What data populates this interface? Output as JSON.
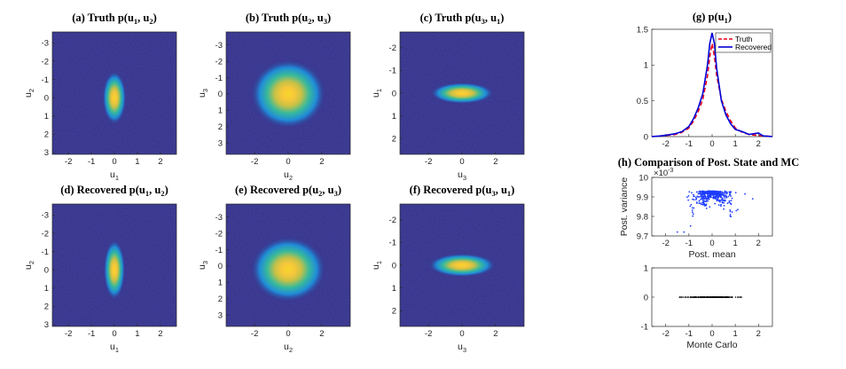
{
  "colors": {
    "background": "#352A87",
    "hot": "#F9D52B",
    "truth": "#E8001C",
    "recovered": "#0000D6",
    "scatter": "#1E3CFF",
    "mc": "#000000"
  },
  "chart_data": [
    {
      "id": "a",
      "type": "heatmap",
      "title": {
        "prefix": "(a)  Truth p(u",
        "s1": "1",
        "mid": ", u",
        "s2": "2",
        "suffix": ")"
      },
      "xlabel": {
        "base": "u",
        "sub": "1"
      },
      "ylabel": {
        "base": "u",
        "sub": "2"
      },
      "xlim": [
        -2.7,
        2.7
      ],
      "ylim": [
        3.1,
        -3.6
      ],
      "xticks": [
        "-2",
        "-1",
        "0",
        "1",
        "2"
      ],
      "yticks": [
        "-3",
        "-2",
        "-1",
        "0",
        "1",
        "2",
        "3"
      ],
      "xticks_v": [
        -2,
        -1,
        0,
        1,
        2
      ],
      "yticks_v": [
        -3,
        -2,
        -1,
        0,
        1,
        2,
        3
      ],
      "blob": {
        "cx": 0,
        "cy": 0,
        "sx": 0.22,
        "sy": 0.62
      }
    },
    {
      "id": "b",
      "type": "heatmap",
      "title": {
        "prefix": "(b)  Truth p(u",
        "s1": "2",
        "mid": ", u",
        "s2": "3",
        "suffix": ")"
      },
      "xlabel": {
        "base": "u",
        "sub": "2"
      },
      "ylabel": {
        "base": "u",
        "sub": "3"
      },
      "xlim": [
        -3.7,
        3.7
      ],
      "ylim": [
        3.7,
        -3.8
      ],
      "xticks": [
        "-2",
        "0",
        "2"
      ],
      "yticks": [
        "-3",
        "-2",
        "-1",
        "0",
        "1",
        "2",
        "3"
      ],
      "xticks_v": [
        -2,
        0,
        2
      ],
      "yticks_v": [
        -3,
        -2,
        -1,
        0,
        1,
        2,
        3
      ],
      "blob": {
        "cx": 0,
        "cy": 0,
        "sx": 0.95,
        "sy": 0.9
      }
    },
    {
      "id": "c",
      "type": "heatmap",
      "title": {
        "prefix": "(c)  Truth p(u",
        "s1": "3",
        "mid": ", u",
        "s2": "1",
        "suffix": ")"
      },
      "xlabel": {
        "base": "u",
        "sub": "3"
      },
      "ylabel": {
        "base": "u",
        "sub": "1"
      },
      "xlim": [
        -3.7,
        3.7
      ],
      "ylim": [
        2.7,
        -2.7
      ],
      "xticks": [
        "-2",
        "0",
        "2"
      ],
      "yticks": [
        "-2",
        "-1",
        "0",
        "1",
        "2"
      ],
      "xticks_v": [
        -2,
        0,
        2
      ],
      "yticks_v": [
        -2,
        -1,
        0,
        1,
        2
      ],
      "blob": {
        "cx": 0,
        "cy": 0,
        "sx": 0.8,
        "sy": 0.2
      }
    },
    {
      "id": "d",
      "type": "heatmap",
      "title": {
        "prefix": "(d)  Recovered p(u",
        "s1": "1",
        "mid": ", u",
        "s2": "2",
        "suffix": ")"
      },
      "xlabel": {
        "base": "u",
        "sub": "1"
      },
      "ylabel": {
        "base": "u",
        "sub": "2"
      },
      "xlim": [
        -2.7,
        2.7
      ],
      "ylim": [
        3.1,
        -3.6
      ],
      "xticks": [
        "-2",
        "-1",
        "0",
        "1",
        "2"
      ],
      "yticks": [
        "-3",
        "-2",
        "-1",
        "0",
        "1",
        "2",
        "3"
      ],
      "xticks_v": [
        -2,
        -1,
        0,
        1,
        2
      ],
      "yticks_v": [
        -3,
        -2,
        -1,
        0,
        1,
        2,
        3
      ],
      "blob": {
        "cx": 0,
        "cy": 0,
        "sx": 0.2,
        "sy": 0.7
      }
    },
    {
      "id": "e",
      "type": "heatmap",
      "title": {
        "prefix": "(e)  Recovered p(u",
        "s1": "2",
        "mid": ", u",
        "s2": "3",
        "suffix": ")"
      },
      "xlabel": {
        "base": "u",
        "sub": "2"
      },
      "ylabel": {
        "base": "u",
        "sub": "3"
      },
      "xlim": [
        -3.7,
        3.7
      ],
      "ylim": [
        3.7,
        -3.8
      ],
      "xticks": [
        "-2",
        "0",
        "2"
      ],
      "yticks": [
        "-3",
        "-2",
        "-1",
        "0",
        "1",
        "2",
        "3"
      ],
      "xticks_v": [
        -2,
        0,
        2
      ],
      "yticks_v": [
        -3,
        -2,
        -1,
        0,
        1,
        2,
        3
      ],
      "blob": {
        "cx": 0,
        "cy": 0.2,
        "sx": 0.95,
        "sy": 0.85
      }
    },
    {
      "id": "f",
      "type": "heatmap",
      "title": {
        "prefix": "(f)  Recovered p(u",
        "s1": "3",
        "mid": ", u",
        "s2": "1",
        "suffix": ")"
      },
      "xlabel": {
        "base": "u",
        "sub": "3"
      },
      "ylabel": {
        "base": "u",
        "sub": "1"
      },
      "xlim": [
        -3.7,
        3.7
      ],
      "ylim": [
        2.7,
        -2.7
      ],
      "xticks": [
        "-2",
        "0",
        "2"
      ],
      "yticks": [
        "-2",
        "-1",
        "0",
        "1",
        "2"
      ],
      "xticks_v": [
        -2,
        0,
        2
      ],
      "yticks_v": [
        -2,
        -1,
        0,
        1,
        2
      ],
      "blob": {
        "cx": 0,
        "cy": 0,
        "sx": 0.85,
        "sy": 0.22
      }
    },
    {
      "id": "g",
      "type": "line",
      "title": {
        "prefix": "(g)  p(u",
        "s1": "1",
        "suffix": ")"
      },
      "xlim": [
        -2.6,
        2.6
      ],
      "ylim": [
        0,
        1.5
      ],
      "xticks": [
        "-2",
        "-1",
        "0",
        "1",
        "2"
      ],
      "yticks": [
        "0",
        "0.5",
        "1",
        "1.5"
      ],
      "xticks_v": [
        -2,
        -1,
        0,
        1,
        2
      ],
      "yticks_v": [
        0,
        0.5,
        1,
        1.5
      ],
      "legend": {
        "position": "top-right",
        "entries": [
          "Truth",
          "Recovered"
        ]
      },
      "x": [
        -2.6,
        -2.2,
        -2.0,
        -1.6,
        -1.3,
        -1.0,
        -0.8,
        -0.6,
        -0.4,
        -0.2,
        -0.1,
        0.0,
        0.1,
        0.2,
        0.4,
        0.6,
        0.8,
        1.0,
        1.3,
        1.6,
        2.0,
        2.2,
        2.6
      ],
      "series": [
        {
          "name": "Truth",
          "style": "dashed",
          "values": [
            0.0,
            0.01,
            0.015,
            0.03,
            0.06,
            0.12,
            0.22,
            0.35,
            0.52,
            0.85,
            1.12,
            1.3,
            1.12,
            0.85,
            0.52,
            0.35,
            0.22,
            0.12,
            0.06,
            0.03,
            0.015,
            0.01,
            0.0
          ]
        },
        {
          "name": "Recovered",
          "style": "solid",
          "values": [
            0.0,
            0.01,
            0.02,
            0.04,
            0.07,
            0.14,
            0.25,
            0.4,
            0.6,
            1.0,
            1.3,
            1.45,
            1.3,
            0.95,
            0.5,
            0.3,
            0.18,
            0.1,
            0.07,
            0.03,
            0.05,
            0.01,
            0.0
          ]
        }
      ]
    },
    {
      "id": "h1",
      "type": "scatter",
      "title": "(h)  Comparison of Post. State and MC",
      "xlabel": "Post. mean",
      "ylabel": "Post. variance",
      "exponent": "10",
      "exponent_power": "-3",
      "exponent_prefix": "×",
      "xlim": [
        -2.6,
        2.6
      ],
      "ylim": [
        9.7,
        10.0
      ],
      "xticks": [
        "-2",
        "-1",
        "0",
        "1",
        "2"
      ],
      "yticks": [
        "9.7",
        "9.8",
        "9.9",
        "10"
      ],
      "xticks_v": [
        -2,
        -1,
        0,
        1,
        2
      ],
      "yticks_v": [
        9.7,
        9.8,
        9.9,
        10.0
      ],
      "cloud": {
        "x_range": [
          -1.5,
          1.8
        ],
        "peak_y": 9.93,
        "spread_y": 0.05
      }
    },
    {
      "id": "h2",
      "type": "scatter",
      "xlabel": "Monte Carlo",
      "xlim": [
        -2.6,
        2.6
      ],
      "ylim": [
        -1,
        1
      ],
      "xticks": [
        "-2",
        "-1",
        "0",
        "1",
        "2"
      ],
      "yticks": [
        "-1",
        "0",
        "1"
      ],
      "xticks_v": [
        -2,
        -1,
        0,
        1,
        2
      ],
      "yticks_v": [
        -1,
        0,
        1
      ],
      "points": {
        "x_range": [
          -1.4,
          1.8
        ],
        "y": 0
      }
    }
  ]
}
